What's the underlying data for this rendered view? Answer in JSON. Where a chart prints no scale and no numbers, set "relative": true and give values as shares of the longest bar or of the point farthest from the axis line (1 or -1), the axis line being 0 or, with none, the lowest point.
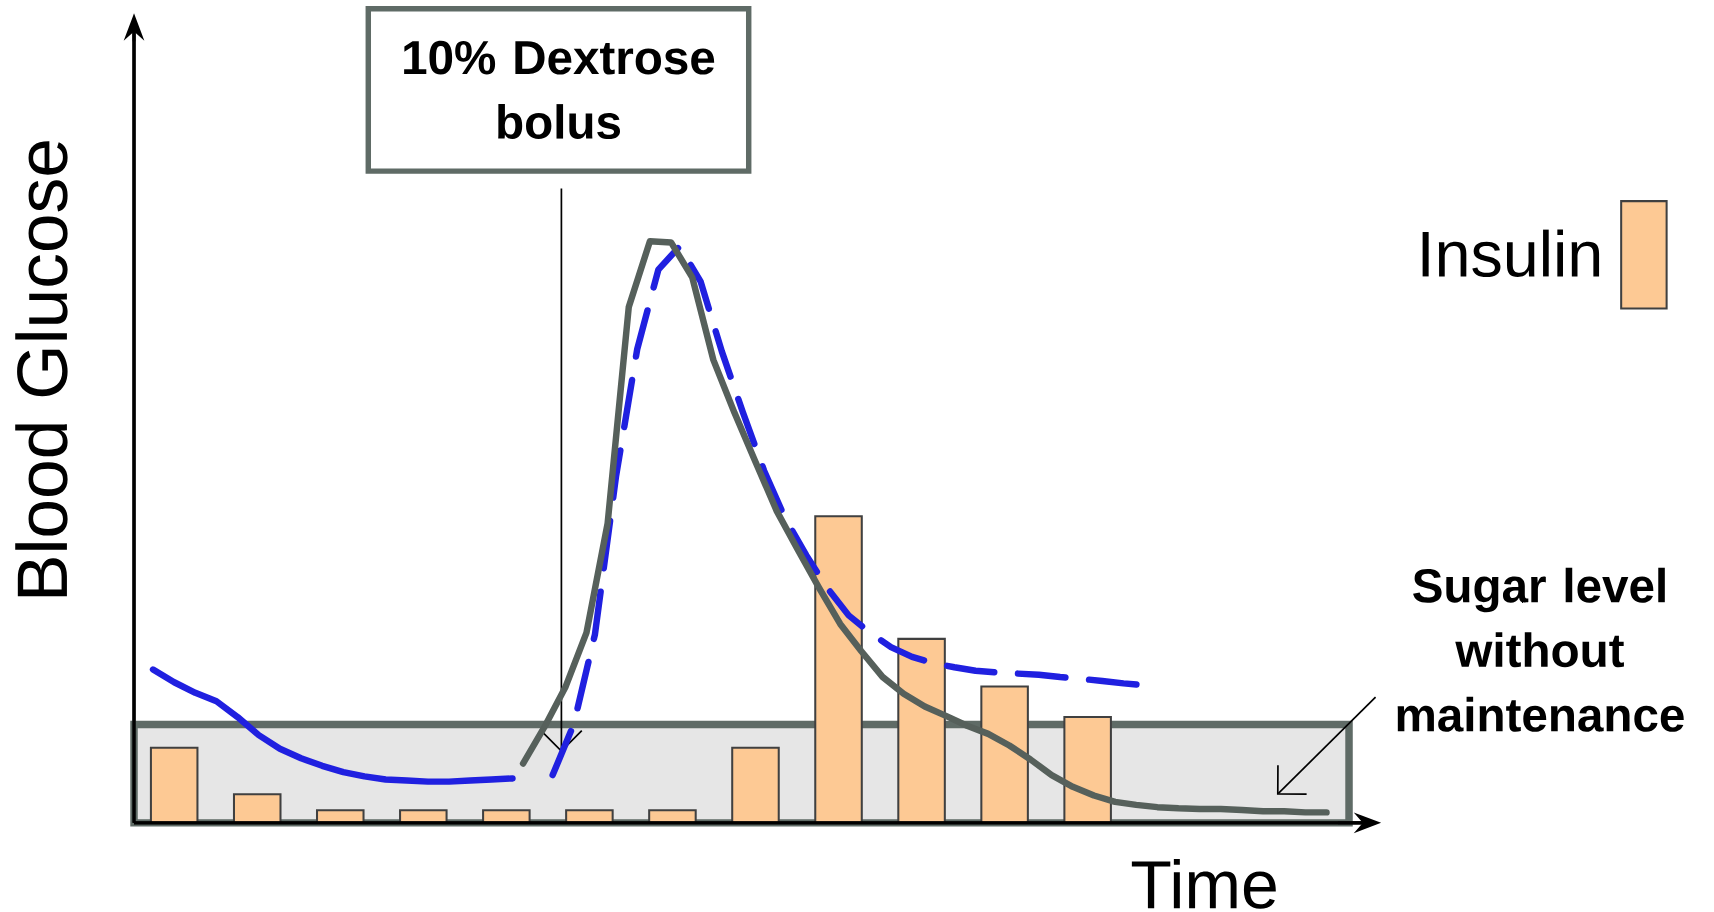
{
  "chart_data": [
    {
      "type": "bar",
      "relative": true,
      "xlabel": "Time",
      "ylabel": "Blood Glucose",
      "tick_labels": false,
      "legend": "right",
      "categories": [
        null,
        null,
        null,
        null,
        null,
        null,
        null,
        null,
        null,
        null,
        null,
        null
      ],
      "series": [
        {
          "name": "Insulin",
          "color": "#fdc994",
          "values": [
            0.245,
            0.093,
            0.041,
            0.041,
            0.041,
            0.041,
            0.041,
            0.245,
            1,
            0.6,
            0.445,
            0.345
          ]
        }
      ],
      "bands": [
        {
          "axis": "y",
          "from": 0,
          "to": 0.321,
          "color": "#e6e6e6"
        }
      ],
      "annotations": [
        "10% Dextrose bolus",
        "Sugar level without maintenance"
      ]
    },
    {
      "type": "line",
      "relative": true,
      "tick_labels": false,
      "marker": "none",
      "line_style": "solid",
      "categories": [
        null,
        null,
        null,
        null,
        null,
        null,
        null,
        null,
        null,
        null,
        null,
        null,
        null,
        null,
        null,
        null,
        null,
        null
      ],
      "series": [
        {
          "color": "#2020e0",
          "values": [
            1,
            0.917,
            0.848,
            0.793,
            0.69,
            0.572,
            0.483,
            0.421,
            0.372,
            0.331,
            0.303,
            0.283,
            0.276,
            0.269,
            0.269,
            0.276,
            0.283,
            0.29
          ]
        }
      ]
    },
    {
      "type": "line",
      "relative": true,
      "tick_labels": false,
      "marker": "none",
      "line_style": "dashed",
      "categories": [
        null,
        null,
        null,
        null,
        null,
        null,
        null,
        null,
        null,
        null,
        null,
        null,
        null,
        null,
        null,
        null,
        null,
        null,
        null,
        null,
        null,
        null,
        null,
        null,
        null,
        null,
        null,
        null,
        null
      ],
      "series": [
        {
          "color": "#2020e0",
          "values": [
            0.083,
            0.171,
            0.327,
            0.602,
            0.822,
            0.96,
            1,
            0.939,
            0.818,
            0.712,
            0.611,
            0.528,
            0.464,
            0.407,
            0.36,
            0.33,
            0.305,
            0.288,
            0.277,
            0.27,
            0.264,
            0.261,
            0.259,
            0.257,
            0.253,
            0.25,
            0.246,
            0.242,
            0.239
          ]
        }
      ]
    },
    {
      "type": "line",
      "relative": true,
      "tick_labels": false,
      "marker": "none",
      "line_style": "solid",
      "categories": [
        null,
        null,
        null,
        null,
        null,
        null,
        null,
        null,
        null,
        null,
        null,
        null,
        null,
        null,
        null,
        null,
        null,
        null,
        null,
        null,
        null,
        null,
        null,
        null,
        null,
        null,
        null,
        null,
        null,
        null,
        null,
        null,
        null,
        null,
        null,
        null,
        null,
        null,
        null
      ],
      "series": [
        {
          "color": "#56605b",
          "values": [
            0.102,
            0.164,
            0.233,
            0.327,
            0.515,
            0.887,
            1,
            0.998,
            0.938,
            0.796,
            0.705,
            0.62,
            0.536,
            0.469,
            0.404,
            0.342,
            0.295,
            0.251,
            0.222,
            0.2,
            0.184,
            0.167,
            0.153,
            0.133,
            0.109,
            0.082,
            0.062,
            0.047,
            0.036,
            0.031,
            0.027,
            0.025,
            0.024,
            0.024,
            0.022,
            0.02,
            0.02,
            0.018,
            0.018
          ]
        }
      ]
    }
  ]
}
